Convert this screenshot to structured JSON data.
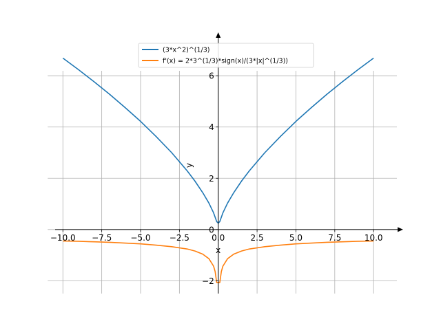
{
  "chart_data": {
    "type": "line",
    "title": "",
    "xlabel": "x",
    "ylabel": "y",
    "xlim": [
      -10.5,
      11.5
    ],
    "ylim": [
      -2.5,
      7.4
    ],
    "x_ticks": [
      -10,
      -7.5,
      -5,
      -2.5,
      0,
      2.5,
      5,
      7.5,
      10
    ],
    "x_tick_labels": [
      "−10.0",
      "−7.5",
      "−5.0",
      "−2.5",
      "0.0",
      "2.5",
      "5.0",
      "7.5",
      "10.0"
    ],
    "y_ticks": [
      -2,
      0,
      2,
      4,
      6
    ],
    "y_tick_labels": [
      "−2",
      "0",
      "2",
      "4",
      "6"
    ],
    "grid": true,
    "legend_position": "upper-center",
    "series": [
      {
        "name": "(3*x^2)^(1/3)",
        "color": "#1f77b4",
        "x": [
          -10,
          -9,
          -8,
          -7,
          -6,
          -5,
          -4,
          -3,
          -2,
          -1.5,
          -1,
          -0.6,
          -0.3,
          -0.1,
          0,
          0.1,
          0.3,
          0.6,
          1,
          1.5,
          2,
          3,
          4,
          5,
          6,
          7,
          8,
          9,
          10
        ],
        "y": [
          6.69,
          6.24,
          5.77,
          5.28,
          4.76,
          4.22,
          3.63,
          3.0,
          2.29,
          1.89,
          1.44,
          1.03,
          0.65,
          0.31,
          0.25,
          0.31,
          0.65,
          1.03,
          1.44,
          1.89,
          2.29,
          3.0,
          3.63,
          4.22,
          4.76,
          5.28,
          5.77,
          6.24,
          6.69
        ]
      },
      {
        "name": "f'(x) = 2*3^(1/3)*sign(x)/(3*|x|^(1/3))",
        "color": "#ff7f0e",
        "x": [
          -10,
          -9,
          -8,
          -7,
          -6,
          -5,
          -4,
          -3,
          -2,
          -1.5,
          -1,
          -0.6,
          -0.3,
          -0.2,
          -0.1,
          0,
          0.1,
          0.2,
          0.3,
          0.6,
          1,
          1.5,
          2,
          3,
          4,
          5,
          6,
          7,
          8,
          9,
          10
        ],
        "y": [
          -0.45,
          -0.46,
          -0.48,
          -0.5,
          -0.53,
          -0.56,
          -0.61,
          -0.67,
          -0.76,
          -0.84,
          -0.96,
          -1.14,
          -1.43,
          -1.64,
          -2.07,
          -2.07,
          -2.07,
          -1.64,
          -1.43,
          -1.14,
          -0.96,
          -0.84,
          -0.76,
          -0.67,
          -0.61,
          -0.56,
          -0.53,
          -0.5,
          -0.48,
          -0.46,
          -0.45
        ]
      }
    ]
  }
}
